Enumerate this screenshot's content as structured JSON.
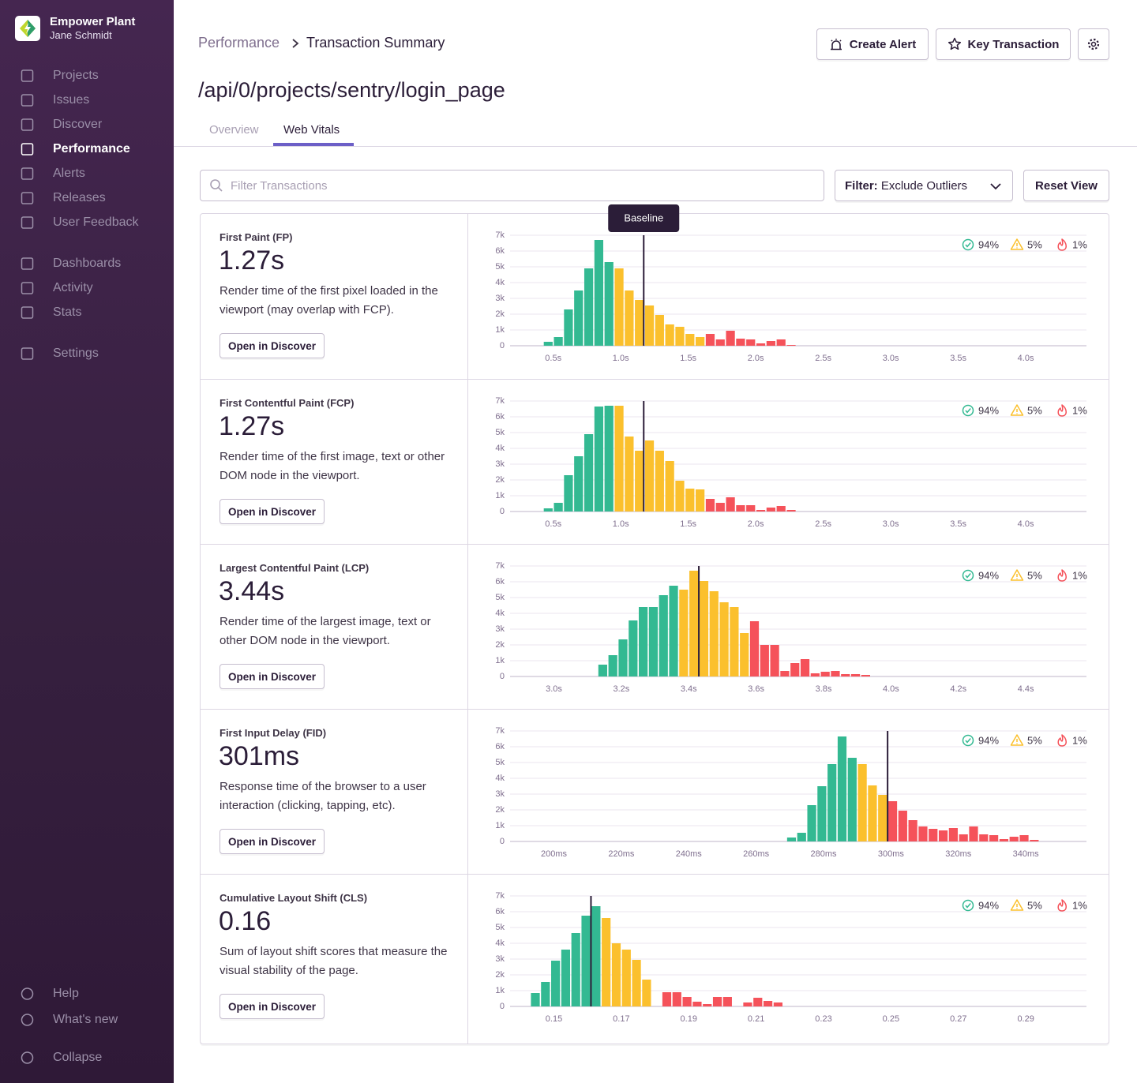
{
  "sidebar": {
    "org": "Empower Plant",
    "user": "Jane Schmidt",
    "nav": [
      "Projects",
      "Issues",
      "Discover",
      "Performance",
      "Alerts",
      "Releases",
      "User Feedback"
    ],
    "nav2": [
      "Dashboards",
      "Activity",
      "Stats"
    ],
    "nav3": [
      "Settings"
    ],
    "footer": [
      "Help",
      "What's new",
      "Collapse"
    ]
  },
  "header": {
    "breadcrumb": [
      "Performance",
      "Transaction Summary"
    ],
    "title": "/api/0/projects/sentry/login_page",
    "buttons": [
      "Create Alert",
      "Key Transaction"
    ]
  },
  "tabs": [
    "Overview",
    "Web Vitals"
  ],
  "filters": {
    "search_placeholder": "Filter Transactions",
    "filter_label": "Filter:",
    "filter_value": "Exclude Outliers",
    "reset": "Reset View"
  },
  "vitals": [
    {
      "name": "First Paint (FP)",
      "value": "1.27s",
      "description": "Render time of the first pixel loaded in the viewport (may overlap with FCP).",
      "button": "Open in Discover"
    },
    {
      "name": "First Contentful Paint (FCP)",
      "value": "1.27s",
      "description": "Render time of the first image, text or other DOM node in the viewport.",
      "button": "Open in Discover"
    },
    {
      "name": "Largest Contentful Paint (LCP)",
      "value": "3.44s",
      "description": "Render time of the largest image, text or other DOM node in the viewport.",
      "button": "Open in Discover"
    },
    {
      "name": "First Input Delay (FID)",
      "value": "301ms",
      "description": "Response time of the browser to a user interaction (clicking, tapping, etc).",
      "button": "Open in Discover"
    },
    {
      "name": "Cumulative Layout Shift (CLS)",
      "value": "0.16",
      "description": "Sum of layout shift scores that measure the visual stability of the page.",
      "button": "Open in Discover"
    }
  ],
  "chart_data": [
    {
      "type": "histogram",
      "grid": true,
      "xlim": [
        0.18,
        4.45
      ],
      "ylim": [
        0,
        7000
      ],
      "yticks": [
        0,
        {
          "value": 1000,
          "label": "1k"
        },
        {
          "value": 2000,
          "label": "2k"
        },
        {
          "value": 3000,
          "label": "3k"
        },
        {
          "value": 4000,
          "label": "4k"
        },
        {
          "value": 5000,
          "label": "5k"
        },
        {
          "value": 6000,
          "label": "6k"
        },
        {
          "value": 7000,
          "label": "7k"
        }
      ],
      "xticks": [
        {
          "value": 0.5,
          "label": "0.5s"
        },
        {
          "value": 1,
          "label": "1.0s"
        },
        {
          "value": 1.5,
          "label": "1.5s"
        },
        {
          "value": 2,
          "label": "2.0s"
        },
        {
          "value": 2.5,
          "label": "2.5s"
        },
        {
          "value": 3,
          "label": "3.0s"
        },
        {
          "value": 3.5,
          "label": "3.5s"
        },
        {
          "value": 4,
          "label": "4.0s"
        }
      ],
      "series": [
        {
          "name": "94%",
          "color": "#33b992",
          "bins": [
            0.425,
            0.5,
            0.575,
            0.65,
            0.725,
            0.8,
            0.875,
            0.95
          ],
          "values": [
            250,
            550,
            2300,
            3500,
            4900,
            6700,
            5300
          ]
        },
        {
          "name": "5%",
          "color": "#fbc02d",
          "bins": [
            0.95,
            1.025,
            1.1,
            1.175,
            1.25,
            1.325,
            1.4,
            1.475,
            1.55,
            1.625
          ],
          "values": [
            4900,
            3500,
            2900,
            2550,
            1950,
            1350,
            1200,
            750,
            550
          ]
        },
        {
          "name": "1%",
          "color": "#f5525a",
          "bins": [
            1.625,
            1.7,
            1.775,
            1.85,
            1.925,
            2.0,
            2.075,
            2.15,
            2.225,
            2.3
          ],
          "values": [
            750,
            400,
            950,
            450,
            400,
            150,
            300,
            400,
            50
          ]
        }
      ],
      "baseline": 1.17,
      "baseline_label": "Baseline"
    },
    {
      "type": "histogram",
      "grid": true,
      "xlim": [
        0.18,
        4.45
      ],
      "ylim": [
        0,
        7000
      ],
      "yticks": [
        0,
        {
          "value": 1000,
          "label": "1k"
        },
        {
          "value": 2000,
          "label": "2k"
        },
        {
          "value": 3000,
          "label": "3k"
        },
        {
          "value": 4000,
          "label": "4k"
        },
        {
          "value": 5000,
          "label": "5k"
        },
        {
          "value": 6000,
          "label": "6k"
        },
        {
          "value": 7000,
          "label": "7k"
        }
      ],
      "xticks": [
        {
          "value": 0.5,
          "label": "0.5s"
        },
        {
          "value": 1,
          "label": "1.0s"
        },
        {
          "value": 1.5,
          "label": "1.5s"
        },
        {
          "value": 2,
          "label": "2.0s"
        },
        {
          "value": 2.5,
          "label": "2.5s"
        },
        {
          "value": 3,
          "label": "3.0s"
        },
        {
          "value": 3.5,
          "label": "3.5s"
        },
        {
          "value": 4,
          "label": "4.0s"
        }
      ],
      "series": [
        {
          "name": "94%",
          "color": "#33b992",
          "bins": [
            0.425,
            0.5,
            0.575,
            0.65,
            0.725,
            0.8,
            0.875,
            0.95
          ],
          "values": [
            200,
            550,
            2300,
            3500,
            4900,
            6650,
            6700
          ]
        },
        {
          "name": "5%",
          "color": "#fbc02d",
          "bins": [
            0.95,
            1.025,
            1.1,
            1.175,
            1.25,
            1.325,
            1.4,
            1.475,
            1.55,
            1.625
          ],
          "values": [
            6700,
            4750,
            3850,
            4500,
            3850,
            3200,
            1950,
            1450,
            1400
          ]
        },
        {
          "name": "1%",
          "color": "#f5525a",
          "bins": [
            1.625,
            1.7,
            1.775,
            1.85,
            1.925,
            2.0,
            2.075,
            2.15,
            2.225,
            2.3
          ],
          "values": [
            800,
            550,
            900,
            400,
            400,
            100,
            250,
            350,
            100
          ]
        }
      ],
      "baseline": 1.17
    },
    {
      "type": "histogram",
      "grid": true,
      "xlim": [
        2.87,
        4.58
      ],
      "ylim": [
        0,
        7000
      ],
      "yticks": [
        0,
        {
          "value": 1000,
          "label": "1k"
        },
        {
          "value": 2000,
          "label": "2k"
        },
        {
          "value": 3000,
          "label": "3k"
        },
        {
          "value": 4000,
          "label": "4k"
        },
        {
          "value": 5000,
          "label": "5k"
        },
        {
          "value": 6000,
          "label": "6k"
        },
        {
          "value": 7000,
          "label": "7k"
        }
      ],
      "xticks": [
        {
          "value": 3,
          "label": "3.0s"
        },
        {
          "value": 3.2,
          "label": "3.2s"
        },
        {
          "value": 3.4,
          "label": "3.4s"
        },
        {
          "value": 3.6,
          "label": "3.6s"
        },
        {
          "value": 3.8,
          "label": "3.8s"
        },
        {
          "value": 4,
          "label": "4.0s"
        },
        {
          "value": 4.2,
          "label": "4.2s"
        },
        {
          "value": 4.4,
          "label": "4.4s"
        }
      ],
      "series": [
        {
          "name": "94%",
          "color": "#33b992",
          "bins": [
            3.13,
            3.16,
            3.19,
            3.22,
            3.25,
            3.28,
            3.31,
            3.34,
            3.37
          ],
          "values": [
            750,
            1350,
            2350,
            3550,
            4400,
            4400,
            5150,
            5750
          ]
        },
        {
          "name": "5%",
          "color": "#fbc02d",
          "bins": [
            3.37,
            3.4,
            3.43,
            3.46,
            3.49,
            3.52,
            3.55,
            3.58
          ],
          "values": [
            5500,
            6700,
            6050,
            5400,
            4700,
            4400,
            2750
          ]
        },
        {
          "name": "1%",
          "color": "#f5525a",
          "bins": [
            3.58,
            3.61,
            3.64,
            3.67,
            3.7,
            3.73,
            3.76,
            3.79,
            3.82,
            3.85,
            3.88,
            3.91,
            3.94
          ],
          "values": [
            3500,
            2000,
            2000,
            350,
            850,
            1100,
            200,
            300,
            350,
            150,
            150,
            100
          ]
        }
      ],
      "baseline": 3.43
    },
    {
      "type": "histogram",
      "grid": true,
      "xlim": [
        187,
        358
      ],
      "ylim": [
        0,
        7000
      ],
      "yticks": [
        0,
        {
          "value": 1000,
          "label": "1k"
        },
        {
          "value": 2000,
          "label": "2k"
        },
        {
          "value": 3000,
          "label": "3k"
        },
        {
          "value": 4000,
          "label": "4k"
        },
        {
          "value": 5000,
          "label": "5k"
        },
        {
          "value": 6000,
          "label": "6k"
        },
        {
          "value": 7000,
          "label": "7k"
        }
      ],
      "xticks": [
        {
          "value": 200,
          "label": "200ms"
        },
        {
          "value": 220,
          "label": "220ms"
        },
        {
          "value": 240,
          "label": "240ms"
        },
        {
          "value": 260,
          "label": "260ms"
        },
        {
          "value": 280,
          "label": "280ms"
        },
        {
          "value": 300,
          "label": "300ms"
        },
        {
          "value": 320,
          "label": "320ms"
        },
        {
          "value": 340,
          "label": "340ms"
        }
      ],
      "series": [
        {
          "name": "94%",
          "color": "#33b992",
          "bins": [
            269,
            272,
            275,
            278,
            281,
            284,
            287,
            290
          ],
          "values": [
            250,
            550,
            2300,
            3500,
            4900,
            6650,
            5300
          ]
        },
        {
          "name": "5%",
          "color": "#fbc02d",
          "bins": [
            290,
            293,
            296,
            299
          ],
          "values": [
            4900,
            3550,
            2950
          ]
        },
        {
          "name": "1%",
          "color": "#f5525a",
          "bins": [
            299,
            302,
            305,
            308,
            311,
            314,
            317,
            320,
            323,
            326,
            329,
            332,
            335,
            338,
            341,
            344
          ],
          "values": [
            2550,
            1950,
            1350,
            950,
            800,
            700,
            850,
            450,
            950,
            450,
            400,
            150,
            300,
            400,
            100
          ]
        }
      ],
      "baseline": 299
    },
    {
      "type": "histogram",
      "grid": true,
      "xlim": [
        0.137,
        0.308
      ],
      "ylim": [
        0,
        7000
      ],
      "yticks": [
        0,
        {
          "value": 1000,
          "label": "1k"
        },
        {
          "value": 2000,
          "label": "2k"
        },
        {
          "value": 3000,
          "label": "3k"
        },
        {
          "value": 4000,
          "label": "4k"
        },
        {
          "value": 5000,
          "label": "5k"
        },
        {
          "value": 6000,
          "label": "6k"
        },
        {
          "value": 7000,
          "label": "7k"
        }
      ],
      "xticks": [
        0.15,
        0.17,
        0.19,
        0.21,
        0.23,
        0.25,
        0.27,
        0.29
      ],
      "series": [
        {
          "name": "94%",
          "color": "#33b992",
          "bins": [
            0.143,
            0.146,
            0.149,
            0.152,
            0.155,
            0.158,
            0.161,
            0.164
          ],
          "values": [
            850,
            1550,
            2900,
            3600,
            4650,
            5750,
            6350
          ]
        },
        {
          "name": "5%",
          "color": "#fbc02d",
          "bins": [
            0.164,
            0.167,
            0.17,
            0.173,
            0.176,
            0.179
          ],
          "values": [
            5600,
            4000,
            3600,
            2950,
            1700
          ]
        },
        {
          "name": "1%",
          "color": "#f5525a",
          "bins": [
            0.179,
            0.182,
            0.185,
            0.188,
            0.191,
            0.194,
            0.197,
            0.2,
            0.203,
            0.206,
            0.209,
            0.212,
            0.215,
            0.218
          ],
          "values": [
            0,
            900,
            900,
            600,
            300,
            150,
            600,
            600,
            0,
            250,
            550,
            350,
            250
          ]
        }
      ],
      "baseline": 0.161
    }
  ]
}
